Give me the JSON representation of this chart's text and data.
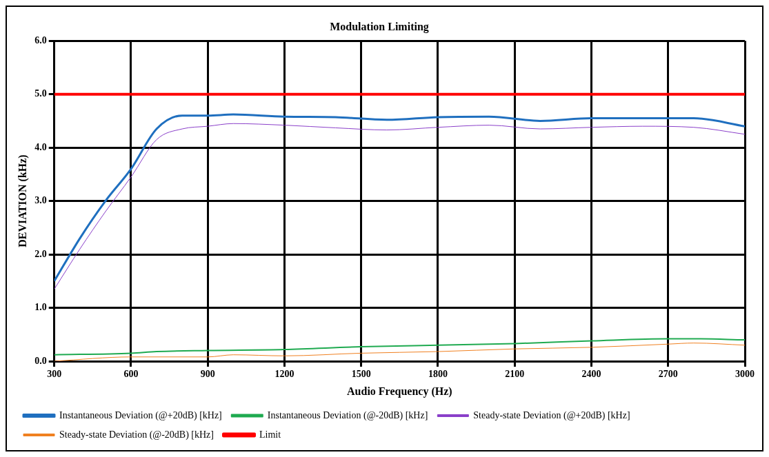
{
  "chart_data": {
    "type": "line",
    "title": "Modulation Limiting",
    "xlabel": "Audio Frequency (Hz)",
    "ylabel": "DEVIATION (kHz)",
    "xlim": [
      300,
      3000
    ],
    "xticks": [
      300,
      600,
      900,
      1200,
      1500,
      1800,
      2100,
      2400,
      2700,
      3000
    ],
    "ylim": [
      0,
      6
    ],
    "yticks": [
      {
        "value": 0,
        "label": "0.0"
      },
      {
        "value": 1,
        "label": "1.0"
      },
      {
        "value": 2,
        "label": "2.0"
      },
      {
        "value": 3,
        "label": "3.0"
      },
      {
        "value": 4,
        "label": "4.0"
      },
      {
        "value": 5,
        "label": "5.0"
      },
      {
        "value": 6,
        "label": "6.0"
      }
    ],
    "grid": true,
    "legend": "bottom",
    "marker": "none",
    "series": [
      {
        "name": "Instantaneous Deviation (@+20dB) [kHz]",
        "color": "#1f6fbf",
        "x": [
          300,
          400,
          500,
          600,
          700,
          800,
          900,
          1000,
          1200,
          1400,
          1600,
          1800,
          2000,
          2200,
          2400,
          2600,
          2800,
          3000
        ],
        "values": [
          1.5,
          2.3,
          3.0,
          3.6,
          4.35,
          4.6,
          4.6,
          4.62,
          4.58,
          4.57,
          4.52,
          4.57,
          4.58,
          4.5,
          4.55,
          4.55,
          4.55,
          4.4
        ]
      },
      {
        "name": "Instantaneous Deviation (@-20dB) [kHz]",
        "color": "#1faa50",
        "x": [
          300,
          600,
          700,
          900,
          1200,
          1500,
          1800,
          2100,
          2400,
          2700,
          2800,
          3000
        ],
        "values": [
          0.12,
          0.15,
          0.18,
          0.2,
          0.22,
          0.27,
          0.3,
          0.33,
          0.38,
          0.42,
          0.42,
          0.4
        ]
      },
      {
        "name": "Steady-state Deviation (@+20dB) [kHz]",
        "color": "#8a3fc9",
        "x": [
          300,
          400,
          500,
          600,
          700,
          800,
          900,
          1000,
          1200,
          1400,
          1600,
          1800,
          2000,
          2200,
          2400,
          2600,
          2800,
          3000
        ],
        "values": [
          1.35,
          2.1,
          2.8,
          3.45,
          4.15,
          4.35,
          4.4,
          4.45,
          4.42,
          4.37,
          4.33,
          4.38,
          4.42,
          4.35,
          4.38,
          4.4,
          4.38,
          4.25
        ]
      },
      {
        "name": "Steady-state Deviation (@-20dB) [kHz]",
        "color": "#f08020",
        "x": [
          300,
          600,
          900,
          1000,
          1200,
          1500,
          1800,
          2100,
          2400,
          2700,
          2800,
          3000
        ],
        "values": [
          0.0,
          0.08,
          0.08,
          0.12,
          0.1,
          0.15,
          0.18,
          0.23,
          0.26,
          0.32,
          0.34,
          0.3
        ]
      },
      {
        "name": "Limit",
        "color": "#ff0000",
        "x": [
          300,
          3000
        ],
        "values": [
          5,
          5
        ]
      }
    ]
  }
}
